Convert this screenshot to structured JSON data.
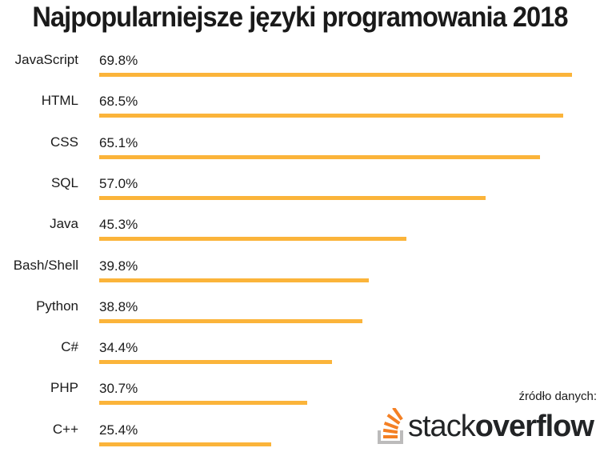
{
  "title": "Najpopularniejsze języki programowania 2018",
  "bar_color": "#FBB43A",
  "rows": [
    {
      "label": "JavaScript",
      "value_text": "69.8%"
    },
    {
      "label": "HTML",
      "value_text": "68.5%"
    },
    {
      "label": "CSS",
      "value_text": "65.1%"
    },
    {
      "label": "SQL",
      "value_text": "57.0%"
    },
    {
      "label": "Java",
      "value_text": "45.3%"
    },
    {
      "label": "Bash/Shell",
      "value_text": "39.8%"
    },
    {
      "label": "Python",
      "value_text": "38.8%"
    },
    {
      "label": "C#",
      "value_text": "34.4%"
    },
    {
      "label": "PHP",
      "value_text": "30.7%"
    },
    {
      "label": "C++",
      "value_text": "25.4%"
    }
  ],
  "source": {
    "label": "źródło danych:",
    "logo_text_light": "stack",
    "logo_text_bold": "overflow",
    "logo_icon": "stackoverflow-logo-icon"
  },
  "chart_data": {
    "type": "bar",
    "orientation": "horizontal",
    "title": "Najpopularniejsze języki programowania 2018",
    "categories": [
      "JavaScript",
      "HTML",
      "CSS",
      "SQL",
      "Java",
      "Bash/Shell",
      "Python",
      "C#",
      "PHP",
      "C++"
    ],
    "values": [
      69.8,
      68.5,
      65.1,
      57.0,
      45.3,
      39.8,
      38.8,
      34.4,
      30.7,
      25.4
    ],
    "unit": "%",
    "xlabel": "",
    "ylabel": "",
    "xlim": [
      0,
      70
    ],
    "grid": false,
    "legend": null,
    "data_labels": true,
    "annotations": [
      "źródło danych: stackoverflow"
    ]
  }
}
